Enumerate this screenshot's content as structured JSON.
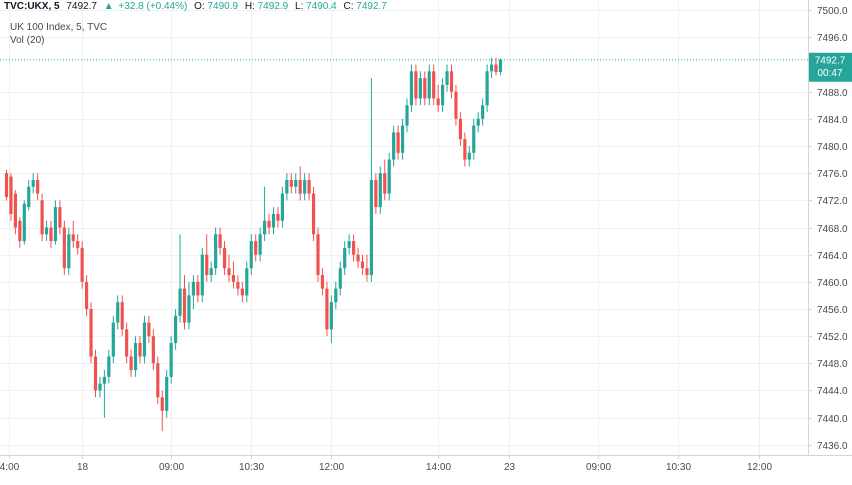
{
  "header": {
    "symbol": "TVC:UKX, 5",
    "last": "7492.7",
    "change": "+32.8 (+0.44%)",
    "o_label": "O:",
    "o_value": "7490.9",
    "h_label": "H:",
    "h_value": "7492.9",
    "l_label": "L:",
    "l_value": "7490.4",
    "c_label": "C:",
    "c_value": "7492.7",
    "legend_title": "UK 100 Index, 5, TVC",
    "vol_label": "Vol (20)"
  },
  "price_tag": {
    "price": "7492.7",
    "countdown": "00:47"
  },
  "colors": {
    "up": "#26a69a",
    "down": "#ef5350",
    "grid": "#eef0f3",
    "axis": "#d1d4dc",
    "price_line": "#26a69a",
    "text": "#4a4a4a"
  },
  "chart_data": {
    "type": "candlestick",
    "ylim": [
      7434.5,
      7501.5
    ],
    "y_ticks": [
      7436,
      7440,
      7444,
      7448,
      7452,
      7456,
      7460,
      7464,
      7468,
      7472,
      7476,
      7480,
      7484,
      7488,
      7496,
      7500
    ],
    "y_tick_labels": [
      "7436.0",
      "7440.0",
      "7444.0",
      "7448.0",
      "7452.0",
      "7456.0",
      "7460.0",
      "7464.0",
      "7468.0",
      "7472.0",
      "7476.0",
      "7480.0",
      "7484.0",
      "7488.0",
      "7496.0",
      "7500.0"
    ],
    "x_ticks": [
      {
        "label": "4:00",
        "bar": 0.5
      },
      {
        "label": "18",
        "bar": 17
      },
      {
        "label": "09:00",
        "bar": 37
      },
      {
        "label": "10:30",
        "bar": 55
      },
      {
        "label": "12:00",
        "bar": 73
      },
      {
        "label": "14:00",
        "bar": 97
      },
      {
        "label": "23",
        "bar": 113
      },
      {
        "label": "09:00",
        "bar": 133
      },
      {
        "label": "10:30",
        "bar": 151
      },
      {
        "label": "12:00",
        "bar": 169
      }
    ],
    "last_price": 7492.7,
    "candles": [
      [
        7476,
        7476.5,
        7472,
        7472.5
      ],
      [
        7475.5,
        7476,
        7469,
        7470
      ],
      [
        7473,
        7473.5,
        7467,
        7468
      ],
      [
        7469,
        7469.5,
        7465,
        7466
      ],
      [
        7466,
        7472,
        7465.5,
        7471.5
      ],
      [
        7471,
        7475,
        7470.5,
        7474
      ],
      [
        7474,
        7476,
        7473,
        7475
      ],
      [
        7475,
        7476,
        7472,
        7473
      ],
      [
        7472,
        7473,
        7466,
        7467
      ],
      [
        7467,
        7469,
        7466,
        7468
      ],
      [
        7468,
        7469,
        7465,
        7466
      ],
      [
        7466,
        7472,
        7465.5,
        7471
      ],
      [
        7471,
        7472,
        7467,
        7468
      ],
      [
        7468,
        7469,
        7461,
        7462
      ],
      [
        7462,
        7468,
        7461,
        7467
      ],
      [
        7467,
        7469,
        7465,
        7466
      ],
      [
        7466,
        7467,
        7464,
        7465
      ],
      [
        7465,
        7466,
        7459,
        7460
      ],
      [
        7460,
        7461,
        7455,
        7456
      ],
      [
        7456,
        7457,
        7448,
        7449
      ],
      [
        7449,
        7450,
        7443,
        7444
      ],
      [
        7444,
        7446,
        7443,
        7445
      ],
      [
        7445,
        7447,
        7440,
        7446
      ],
      [
        7446,
        7450,
        7445,
        7449
      ],
      [
        7449,
        7455,
        7448,
        7454
      ],
      [
        7454,
        7458,
        7453,
        7457
      ],
      [
        7457,
        7458,
        7452,
        7453
      ],
      [
        7453,
        7454,
        7448,
        7449
      ],
      [
        7449,
        7450,
        7446,
        7447
      ],
      [
        7447,
        7452,
        7446,
        7451
      ],
      [
        7451,
        7452,
        7448,
        7449
      ],
      [
        7449,
        7455,
        7448,
        7454
      ],
      [
        7454,
        7455,
        7451,
        7452
      ],
      [
        7452,
        7453,
        7447,
        7448
      ],
      [
        7448,
        7449,
        7442,
        7443
      ],
      [
        7443,
        7444,
        7438,
        7441
      ],
      [
        7441,
        7447,
        7440,
        7446
      ],
      [
        7446,
        7452,
        7445,
        7451
      ],
      [
        7451,
        7456,
        7450,
        7455
      ],
      [
        7455,
        7467,
        7454,
        7459
      ],
      [
        7459,
        7461,
        7453,
        7454
      ],
      [
        7454,
        7460,
        7453,
        7458
      ],
      [
        7458,
        7461,
        7456,
        7460
      ],
      [
        7460,
        7461,
        7457,
        7458
      ],
      [
        7458,
        7465,
        7457,
        7464
      ],
      [
        7464,
        7467,
        7460,
        7461
      ],
      [
        7461,
        7463,
        7460,
        7462
      ],
      [
        7462,
        7468,
        7461,
        7467
      ],
      [
        7467,
        7468,
        7464,
        7465
      ],
      [
        7465,
        7466,
        7461,
        7462
      ],
      [
        7462,
        7464,
        7460,
        7461
      ],
      [
        7461,
        7463,
        7459,
        7460
      ],
      [
        7460,
        7461,
        7458,
        7459
      ],
      [
        7459,
        7460,
        7457,
        7458
      ],
      [
        7458,
        7463,
        7457,
        7462
      ],
      [
        7462,
        7467,
        7461,
        7466
      ],
      [
        7466,
        7467,
        7463,
        7464
      ],
      [
        7464,
        7468,
        7463,
        7467
      ],
      [
        7467,
        7474,
        7466,
        7469
      ],
      [
        7469,
        7470,
        7467,
        7468
      ],
      [
        7468,
        7471,
        7467,
        7470
      ],
      [
        7470,
        7471,
        7468,
        7469
      ],
      [
        7469,
        7474,
        7468,
        7473
      ],
      [
        7473,
        7476,
        7472,
        7475
      ],
      [
        7475,
        7476,
        7473,
        7474
      ],
      [
        7474,
        7476,
        7473,
        7475
      ],
      [
        7475,
        7477,
        7472,
        7473
      ],
      [
        7473,
        7476,
        7472,
        7475
      ],
      [
        7475,
        7476,
        7472,
        7473
      ],
      [
        7473,
        7474,
        7466,
        7467
      ],
      [
        7467,
        7468,
        7460,
        7461
      ],
      [
        7461,
        7462,
        7458,
        7459
      ],
      [
        7459,
        7460,
        7452,
        7453
      ],
      [
        7453,
        7458,
        7451,
        7457
      ],
      [
        7457,
        7460,
        7456,
        7459
      ],
      [
        7459,
        7463,
        7458,
        7462
      ],
      [
        7462,
        7466,
        7461,
        7465
      ],
      [
        7465,
        7467,
        7464,
        7466
      ],
      [
        7466,
        7467,
        7463,
        7464
      ],
      [
        7464,
        7465,
        7462,
        7463
      ],
      [
        7463,
        7464,
        7461,
        7462
      ],
      [
        7462,
        7464,
        7460,
        7461
      ],
      [
        7461,
        7490,
        7460,
        7475
      ],
      [
        7475,
        7476,
        7470,
        7471
      ],
      [
        7471,
        7477,
        7470,
        7476
      ],
      [
        7476,
        7478,
        7472,
        7473
      ],
      [
        7473,
        7479,
        7472,
        7478
      ],
      [
        7478,
        7483,
        7477,
        7482
      ],
      [
        7482,
        7483,
        7478,
        7479
      ],
      [
        7479,
        7484,
        7478,
        7483
      ],
      [
        7483,
        7487,
        7482,
        7486
      ],
      [
        7486,
        7492,
        7485,
        7491
      ],
      [
        7491,
        7492,
        7486,
        7487
      ],
      [
        7487,
        7491,
        7486,
        7490
      ],
      [
        7490,
        7491,
        7486,
        7487
      ],
      [
        7487,
        7492,
        7486,
        7491
      ],
      [
        7491,
        7492,
        7486,
        7487
      ],
      [
        7487,
        7489,
        7485,
        7486
      ],
      [
        7486,
        7490,
        7485,
        7489
      ],
      [
        7489,
        7492,
        7488,
        7491
      ],
      [
        7491,
        7492,
        7487,
        7488
      ],
      [
        7488,
        7489,
        7483,
        7484
      ],
      [
        7484,
        7485,
        7480,
        7481
      ],
      [
        7481,
        7482,
        7477,
        7478
      ],
      [
        7478,
        7480,
        7477,
        7479
      ],
      [
        7479,
        7484,
        7478,
        7483
      ],
      [
        7483,
        7485,
        7482,
        7484
      ],
      [
        7484,
        7487,
        7483,
        7486
      ],
      [
        7486,
        7492,
        7485,
        7491
      ],
      [
        7491,
        7493,
        7490,
        7492
      ],
      [
        7492,
        7493,
        7490.4,
        7490.9
      ],
      [
        7490.9,
        7492.9,
        7490.4,
        7492.7
      ]
    ]
  }
}
